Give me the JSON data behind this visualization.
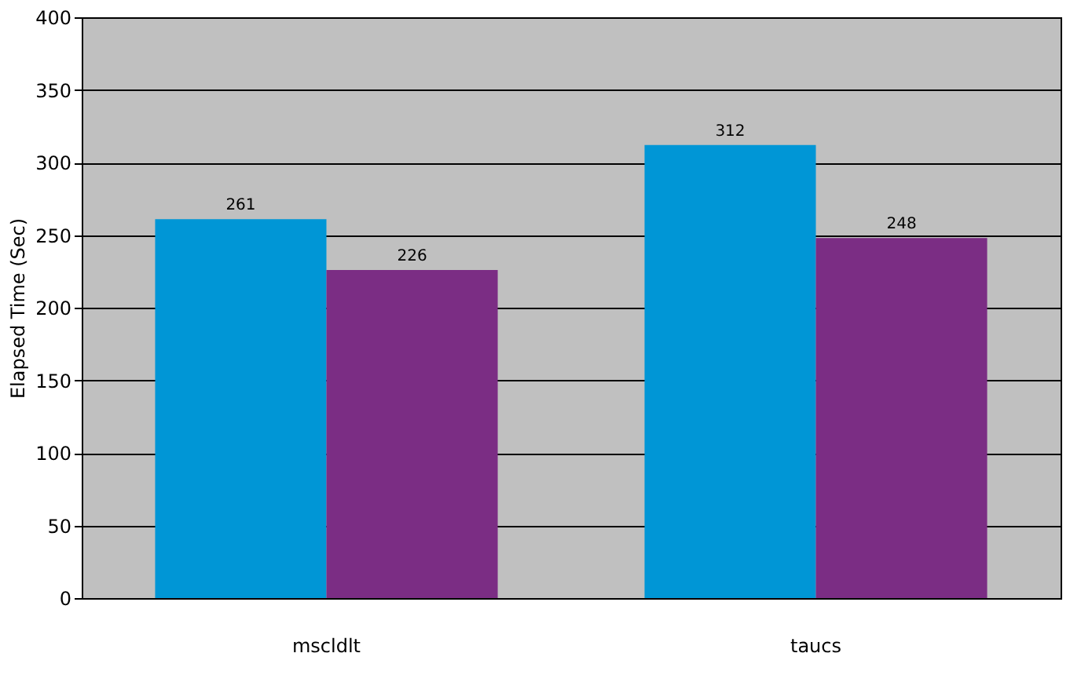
{
  "chart_data": {
    "type": "bar",
    "ylabel": "Elapsed Time (Sec)",
    "categories": [
      "mscldlt",
      "taucs"
    ],
    "series": [
      {
        "color": "#0096d6",
        "values": [
          261,
          312
        ]
      },
      {
        "color": "#7b2d84",
        "values": [
          226,
          248
        ]
      }
    ],
    "ylim": [
      0,
      400
    ],
    "yticks": [
      0,
      50,
      100,
      150,
      200,
      250,
      300,
      350,
      400
    ],
    "grid": "y",
    "data_labels": true
  }
}
